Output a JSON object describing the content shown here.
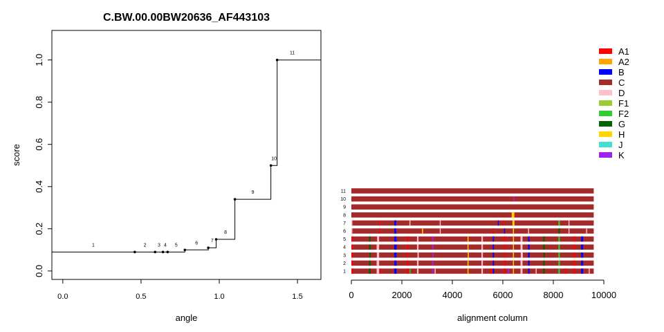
{
  "chart_data": [
    {
      "type": "line",
      "step": true,
      "title": "C.BW.00.00BW20636_AF443103",
      "xlabel": "angle",
      "ylabel": "score",
      "xlim": [
        -0.07,
        1.65
      ],
      "ylim": [
        -0.04,
        1.14
      ],
      "xticks": [
        0.0,
        0.5,
        1.0,
        1.5
      ],
      "xtick_labels": [
        "0.0",
        "0.5",
        "1.0",
        "1.5"
      ],
      "yticks": [
        0.0,
        0.2,
        0.4,
        0.6,
        0.8,
        1.0
      ],
      "ytick_labels": [
        "0.0",
        "0.2",
        "0.4",
        "0.6",
        "0.8",
        "1.0"
      ],
      "grid": false,
      "series": [
        {
          "points": [
            {
              "label": "1",
              "x": 0.46,
              "y": 0.09
            },
            {
              "label": "2",
              "x": 0.59,
              "y": 0.09
            },
            {
              "label": "3",
              "x": 0.64,
              "y": 0.09
            },
            {
              "label": "4",
              "x": 0.67,
              "y": 0.09
            },
            {
              "label": "5",
              "x": 0.78,
              "y": 0.1
            },
            {
              "label": "6",
              "x": 0.93,
              "y": 0.11
            },
            {
              "label": "7",
              "x": 0.98,
              "y": 0.15
            },
            {
              "label": "8",
              "x": 1.1,
              "y": 0.34
            },
            {
              "label": "9",
              "x": 1.33,
              "y": 0.5
            },
            {
              "label": "10",
              "x": 1.37,
              "y": 1.0
            },
            {
              "label": "11",
              "x": 1.65,
              "y": 1.0
            }
          ]
        }
      ]
    },
    {
      "type": "heatmap",
      "xlabel": "alignment column",
      "xlim": [
        0,
        10000
      ],
      "xticks": [
        0,
        2000,
        4000,
        6000,
        8000,
        10000
      ],
      "xtick_labels": [
        "0",
        "2000",
        "4000",
        "6000",
        "8000",
        "10000"
      ],
      "alignment_length": 9600,
      "rows": [
        "1",
        "2",
        "3",
        "4",
        "5",
        "6",
        "7",
        "8",
        "9",
        "10",
        "11"
      ],
      "background_subtype": "C",
      "legend": [
        {
          "label": "A1",
          "color": "#ff0000"
        },
        {
          "label": "A2",
          "color": "#ffa500"
        },
        {
          "label": "B",
          "color": "#0000ff"
        },
        {
          "label": "C",
          "color": "#a52a2a"
        },
        {
          "label": "D",
          "color": "#ffc0cb"
        },
        {
          "label": "F1",
          "color": "#9acd32"
        },
        {
          "label": "F2",
          "color": "#32cd32"
        },
        {
          "label": "G",
          "color": "#006400"
        },
        {
          "label": "H",
          "color": "#ffd700"
        },
        {
          "label": "J",
          "color": "#40e0d0"
        },
        {
          "label": "K",
          "color": "#a020f0"
        }
      ],
      "legend_position": "top-right",
      "row_segments": {
        "1": [
          [
            0,
            60,
            "A1"
          ],
          [
            700,
            760,
            "G"
          ],
          [
            1000,
            1100,
            "D"
          ],
          [
            1130,
            1170,
            "A1"
          ],
          [
            1700,
            1790,
            "B"
          ],
          [
            2200,
            2260,
            "A1"
          ],
          [
            2310,
            2350,
            "F2"
          ],
          [
            2600,
            2660,
            "D"
          ],
          [
            3200,
            3250,
            "K"
          ],
          [
            3300,
            3340,
            "D"
          ],
          [
            4600,
            4640,
            "H"
          ],
          [
            5150,
            5210,
            "D"
          ],
          [
            5500,
            5560,
            "A1"
          ],
          [
            5600,
            5650,
            "B"
          ],
          [
            6050,
            6110,
            "A1"
          ],
          [
            6200,
            6260,
            "K"
          ],
          [
            6400,
            6440,
            "H"
          ],
          [
            6700,
            6780,
            "D"
          ],
          [
            7000,
            7060,
            "B"
          ],
          [
            7300,
            7340,
            "D"
          ],
          [
            7600,
            7660,
            "G"
          ],
          [
            8200,
            8260,
            "F2"
          ],
          [
            8450,
            8510,
            "A1"
          ],
          [
            8800,
            8860,
            "A1"
          ],
          [
            9100,
            9180,
            "B"
          ],
          [
            9400,
            9440,
            "D"
          ]
        ],
        "2": [
          [
            0,
            60,
            "A1"
          ],
          [
            700,
            760,
            "G"
          ],
          [
            1000,
            1100,
            "D"
          ],
          [
            1700,
            1790,
            "B"
          ],
          [
            2200,
            2260,
            "A1"
          ],
          [
            2600,
            2660,
            "D"
          ],
          [
            3200,
            3250,
            "K"
          ],
          [
            4600,
            4640,
            "H"
          ],
          [
            5150,
            5210,
            "D"
          ],
          [
            5600,
            5650,
            "B"
          ],
          [
            6050,
            6110,
            "A1"
          ],
          [
            6400,
            6440,
            "H"
          ],
          [
            6700,
            6780,
            "D"
          ],
          [
            7000,
            7060,
            "B"
          ],
          [
            7600,
            7660,
            "G"
          ],
          [
            8200,
            8260,
            "F2"
          ],
          [
            8800,
            8860,
            "A1"
          ],
          [
            9100,
            9180,
            "B"
          ]
        ],
        "3": [
          [
            0,
            60,
            "A1"
          ],
          [
            720,
            770,
            "G"
          ],
          [
            1010,
            1100,
            "D"
          ],
          [
            1700,
            1790,
            "B"
          ],
          [
            2180,
            2240,
            "A1"
          ],
          [
            2620,
            2670,
            "D"
          ],
          [
            3210,
            3260,
            "K"
          ],
          [
            4610,
            4650,
            "H"
          ],
          [
            5150,
            5210,
            "D"
          ],
          [
            5600,
            5650,
            "B"
          ],
          [
            6060,
            6110,
            "A1"
          ],
          [
            6400,
            6440,
            "H"
          ],
          [
            6710,
            6790,
            "D"
          ],
          [
            7000,
            7060,
            "B"
          ],
          [
            7610,
            7660,
            "G"
          ],
          [
            8200,
            8260,
            "F2"
          ],
          [
            8800,
            8860,
            "A1"
          ],
          [
            9100,
            9180,
            "B"
          ]
        ],
        "4": [
          [
            0,
            50,
            "A1"
          ],
          [
            700,
            760,
            "G"
          ],
          [
            1000,
            1100,
            "D"
          ],
          [
            1700,
            1790,
            "B"
          ],
          [
            2200,
            2260,
            "A1"
          ],
          [
            2600,
            2660,
            "D"
          ],
          [
            3200,
            3250,
            "K"
          ],
          [
            4600,
            4640,
            "H"
          ],
          [
            5150,
            5210,
            "D"
          ],
          [
            5600,
            5650,
            "B"
          ],
          [
            6050,
            6110,
            "A1"
          ],
          [
            6400,
            6440,
            "H"
          ],
          [
            6700,
            6780,
            "D"
          ],
          [
            7000,
            7060,
            "B"
          ],
          [
            7600,
            7660,
            "G"
          ],
          [
            8200,
            8260,
            "F2"
          ],
          [
            8800,
            8860,
            "A1"
          ],
          [
            9100,
            9180,
            "B"
          ]
        ],
        "5": [
          [
            0,
            50,
            "A1"
          ],
          [
            700,
            760,
            "G"
          ],
          [
            1020,
            1100,
            "D"
          ],
          [
            1700,
            1790,
            "B"
          ],
          [
            2200,
            2260,
            "A1"
          ],
          [
            2600,
            2660,
            "D"
          ],
          [
            3200,
            3250,
            "K"
          ],
          [
            4600,
            4640,
            "H"
          ],
          [
            5150,
            5210,
            "D"
          ],
          [
            5600,
            5650,
            "B"
          ],
          [
            6050,
            6110,
            "A1"
          ],
          [
            6400,
            6440,
            "H"
          ],
          [
            6700,
            6780,
            "D"
          ],
          [
            7000,
            7060,
            "B"
          ],
          [
            7600,
            7660,
            "G"
          ],
          [
            8200,
            8260,
            "F2"
          ],
          [
            8800,
            8860,
            "A1"
          ],
          [
            9100,
            9180,
            "B"
          ]
        ],
        "6": [
          [
            0,
            40,
            "D"
          ],
          [
            1100,
            1140,
            "A1"
          ],
          [
            1700,
            1780,
            "B"
          ],
          [
            2800,
            2840,
            "H"
          ],
          [
            3500,
            3540,
            "D"
          ],
          [
            5600,
            5640,
            "A1"
          ],
          [
            6050,
            6090,
            "B"
          ],
          [
            6400,
            6440,
            "H"
          ],
          [
            7000,
            7040,
            "D"
          ],
          [
            8200,
            8260,
            "G"
          ],
          [
            8600,
            8640,
            "D"
          ],
          [
            9300,
            9340,
            "D"
          ]
        ],
        "7": [
          [
            0,
            40,
            "D"
          ],
          [
            1100,
            1140,
            "A1"
          ],
          [
            1700,
            1780,
            "B"
          ],
          [
            2300,
            2340,
            "D"
          ],
          [
            3500,
            3540,
            "D"
          ],
          [
            5800,
            5840,
            "B"
          ],
          [
            6000,
            6040,
            "A1"
          ],
          [
            6380,
            6460,
            "H"
          ],
          [
            8200,
            8260,
            "F2"
          ],
          [
            8600,
            8640,
            "D"
          ]
        ],
        "8": [
          [
            6350,
            6460,
            "H"
          ],
          [
            6460,
            6490,
            "A1"
          ]
        ],
        "9": [],
        "10": [
          [
            6420,
            6460,
            "K"
          ]
        ],
        "11": []
      }
    }
  ]
}
